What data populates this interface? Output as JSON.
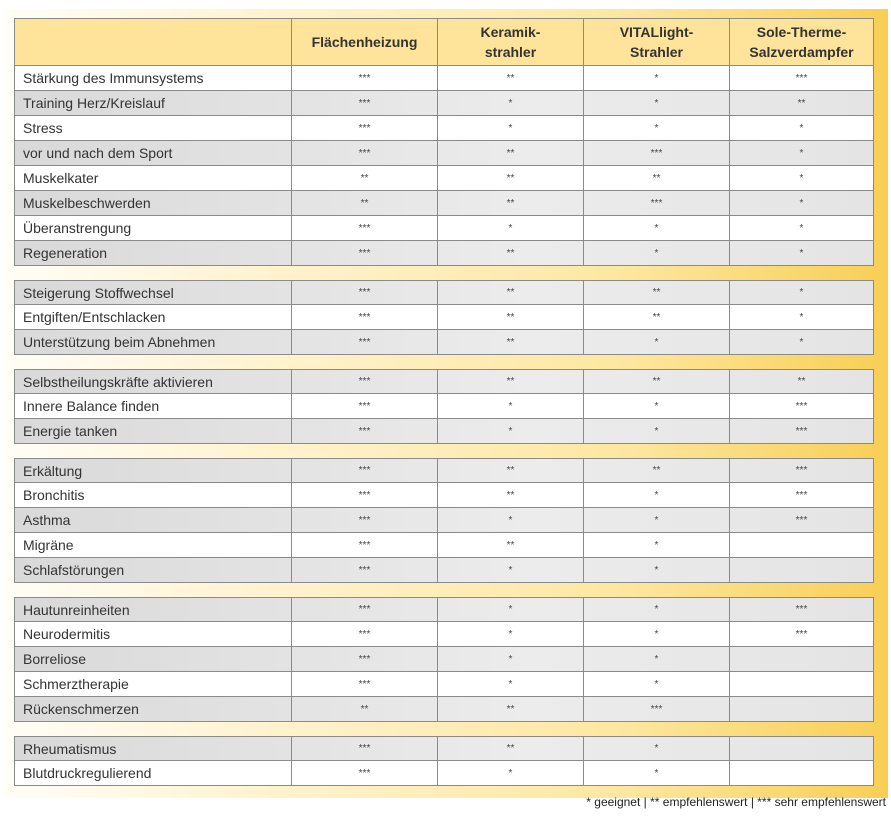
{
  "table": {
    "headers": [
      "",
      "Flächenheizung",
      "Keramik-\nstrahler",
      "VITALlight-\nStrahler",
      "Sole-Therme-\nSalzverdampfer"
    ],
    "groups": [
      [
        [
          "Stärkung des Immunsystems",
          "***",
          "**",
          "*",
          "***"
        ],
        [
          "Training Herz/Kreislauf",
          "***",
          "*",
          "*",
          "**"
        ],
        [
          "Stress",
          "***",
          "*",
          "*",
          "*"
        ],
        [
          "vor und nach dem Sport",
          "***",
          "**",
          "***",
          "*"
        ],
        [
          "Muskelkater",
          "**",
          "**",
          "**",
          "*"
        ],
        [
          "Muskelbeschwerden",
          "**",
          "**",
          "***",
          "*"
        ],
        [
          "Überanstrengung",
          "***",
          "*",
          "*",
          "*"
        ],
        [
          "Regeneration",
          "***",
          "**",
          "*",
          "*"
        ]
      ],
      [
        [
          "Steigerung Stoffwechsel",
          "***",
          "**",
          "**",
          "*"
        ],
        [
          "Entgiften/Entschlacken",
          "***",
          "**",
          "**",
          "*"
        ],
        [
          "Unterstützung beim Abnehmen",
          "***",
          "**",
          "*",
          "*"
        ]
      ],
      [
        [
          "Selbstheilungskräfte aktivieren",
          "***",
          "**",
          "**",
          "**"
        ],
        [
          "Innere Balance finden",
          "***",
          "*",
          "*",
          "***"
        ],
        [
          "Energie tanken",
          "***",
          "*",
          "*",
          "***"
        ]
      ],
      [
        [
          "Erkältung",
          "***",
          "**",
          "**",
          "***"
        ],
        [
          "Bronchitis",
          "***",
          "**",
          "*",
          "***"
        ],
        [
          "Asthma",
          "***",
          "*",
          "*",
          "***"
        ],
        [
          "Migräne",
          "***",
          "**",
          "*",
          ""
        ],
        [
          "Schlafstörungen",
          "***",
          "*",
          "*",
          ""
        ]
      ],
      [
        [
          "Hautunreinheiten",
          "***",
          "*",
          "*",
          "***"
        ],
        [
          "Neurodermitis",
          "***",
          "*",
          "*",
          "***"
        ],
        [
          "Borreliose",
          "***",
          "*",
          "*",
          ""
        ],
        [
          "Schmerztherapie",
          "***",
          "*",
          "*",
          ""
        ],
        [
          "Rückenschmerzen",
          "**",
          "**",
          "***",
          ""
        ]
      ],
      [
        [
          "Rheumatismus",
          "***",
          "**",
          "*",
          ""
        ],
        [
          "Blutdruckregulierend",
          "***",
          "*",
          "*",
          ""
        ]
      ]
    ]
  },
  "legend": "* geeignet | ** empfehlenswert | *** sehr empfehlenswert",
  "colors": {
    "header": "#fde49a",
    "accent": "#f8cf55",
    "row_alt": "#e0e0e0"
  }
}
